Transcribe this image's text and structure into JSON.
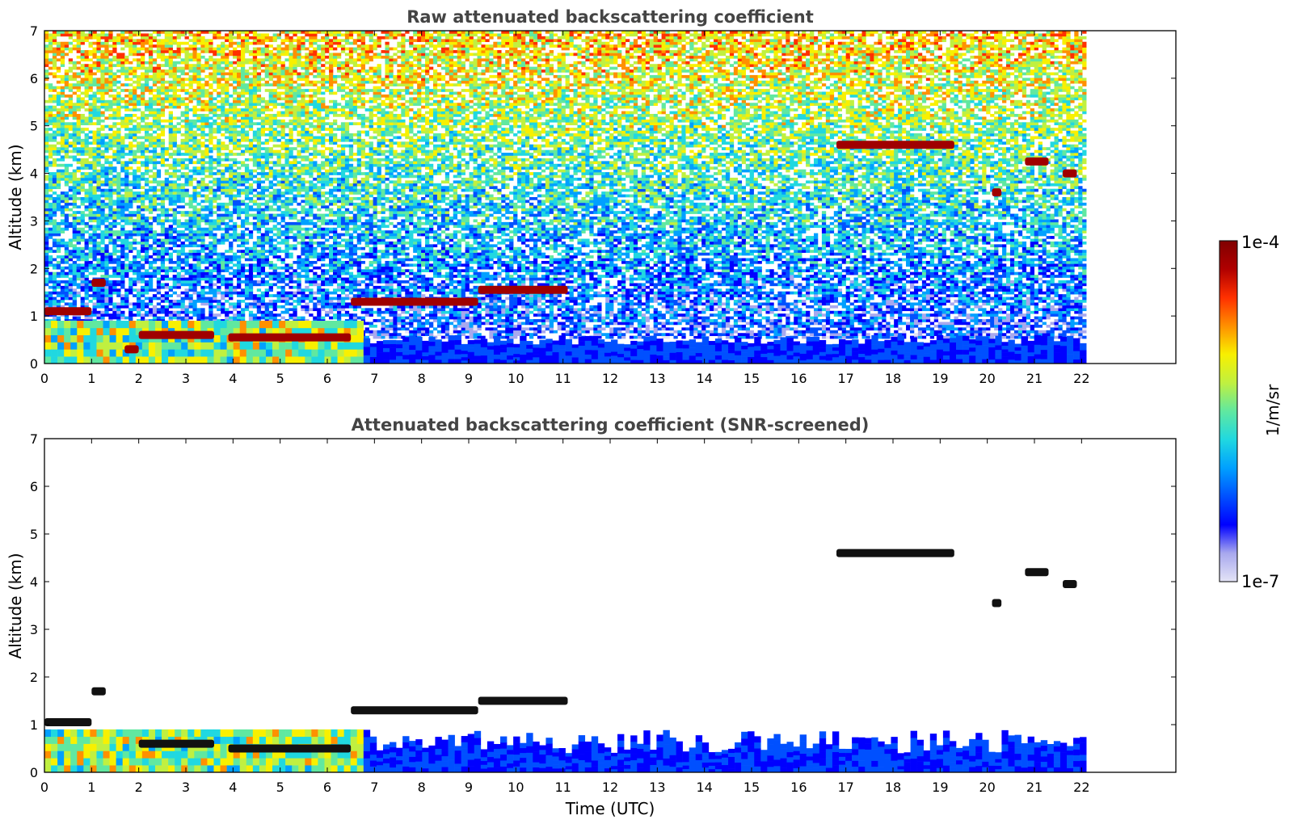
{
  "chart_data": [
    {
      "type": "heatmap",
      "title": "Raw attenuated backscattering coefficient",
      "xlabel": "",
      "ylabel": "Altitude (km)",
      "xlim": [
        0,
        24
      ],
      "ylim": [
        0,
        7
      ],
      "xticks": [
        0,
        1,
        2,
        3,
        4,
        5,
        6,
        7,
        8,
        9,
        10,
        11,
        12,
        13,
        14,
        15,
        16,
        17,
        18,
        19,
        20,
        21,
        22
      ],
      "yticks": [
        0,
        1,
        2,
        3,
        4,
        5,
        6,
        7
      ],
      "data_end_time": 22.1,
      "colorscale": "log",
      "features": [
        {
          "kind": "noise",
          "note": "noisy background, increasing with altitude"
        },
        {
          "kind": "boundary_layer",
          "t0": 0,
          "t1": 22.1,
          "top_km": 0.5
        },
        {
          "kind": "cloud",
          "t0": 0.0,
          "t1": 1.0,
          "alt_km": 1.1
        },
        {
          "kind": "cloud",
          "t0": 1.0,
          "t1": 1.3,
          "alt_km": 1.7
        },
        {
          "kind": "cloud",
          "t0": 1.7,
          "t1": 2.0,
          "alt_km": 0.3
        },
        {
          "kind": "cloud",
          "t0": 2.0,
          "t1": 3.6,
          "alt_km": 0.6
        },
        {
          "kind": "cloud",
          "t0": 3.9,
          "t1": 6.5,
          "alt_km": 0.55
        },
        {
          "kind": "cloud",
          "t0": 6.5,
          "t1": 9.2,
          "alt_km": 1.3
        },
        {
          "kind": "cloud",
          "t0": 9.2,
          "t1": 11.1,
          "alt_km": 1.55
        },
        {
          "kind": "cloud",
          "t0": 16.8,
          "t1": 19.3,
          "alt_km": 4.6
        },
        {
          "kind": "cloud",
          "t0": 20.1,
          "t1": 20.3,
          "alt_km": 3.6
        },
        {
          "kind": "cloud",
          "t0": 20.8,
          "t1": 21.3,
          "alt_km": 4.25
        },
        {
          "kind": "cloud",
          "t0": 21.6,
          "t1": 21.9,
          "alt_km": 4.0
        }
      ]
    },
    {
      "type": "heatmap",
      "title": "Attenuated backscattering coefficient (SNR-screened)",
      "xlabel": "Time (UTC)",
      "ylabel": "Altitude (km)",
      "xlim": [
        0,
        24
      ],
      "ylim": [
        0,
        7
      ],
      "xticks": [
        0,
        1,
        2,
        3,
        4,
        5,
        6,
        7,
        8,
        9,
        10,
        11,
        12,
        13,
        14,
        15,
        16,
        17,
        18,
        19,
        20,
        21,
        22
      ],
      "yticks": [
        0,
        1,
        2,
        3,
        4,
        5,
        6,
        7
      ],
      "data_end_time": 22.1,
      "colorscale": "log",
      "features": [
        {
          "kind": "boundary_layer",
          "t0": 0,
          "t1": 22.1,
          "top_km": 0.9
        },
        {
          "kind": "cloud",
          "t0": 0.0,
          "t1": 1.0,
          "alt_km": 1.05
        },
        {
          "kind": "cloud",
          "t0": 1.0,
          "t1": 1.3,
          "alt_km": 1.7
        },
        {
          "kind": "cloud",
          "t0": 2.0,
          "t1": 3.6,
          "alt_km": 0.6
        },
        {
          "kind": "cloud",
          "t0": 3.9,
          "t1": 6.5,
          "alt_km": 0.5
        },
        {
          "kind": "cloud",
          "t0": 6.5,
          "t1": 9.2,
          "alt_km": 1.3
        },
        {
          "kind": "cloud",
          "t0": 9.2,
          "t1": 11.1,
          "alt_km": 1.5
        },
        {
          "kind": "cloud",
          "t0": 16.8,
          "t1": 19.3,
          "alt_km": 4.6
        },
        {
          "kind": "cloud",
          "t0": 20.1,
          "t1": 20.3,
          "alt_km": 3.55
        },
        {
          "kind": "cloud",
          "t0": 20.8,
          "t1": 21.3,
          "alt_km": 4.2
        },
        {
          "kind": "cloud",
          "t0": 21.6,
          "t1": 21.9,
          "alt_km": 3.95
        }
      ]
    }
  ],
  "colorbar": {
    "label": "1/m/sr",
    "max_label": "1e-4",
    "min_label": "1e-7",
    "colors": [
      "#e4e4f6",
      "#a8a8ee",
      "#0000ff",
      "#0050ff",
      "#00a0ff",
      "#20d8e0",
      "#60e8a0",
      "#c0f040",
      "#f8f000",
      "#ff9000",
      "#ff3000",
      "#b00000",
      "#800000"
    ]
  }
}
